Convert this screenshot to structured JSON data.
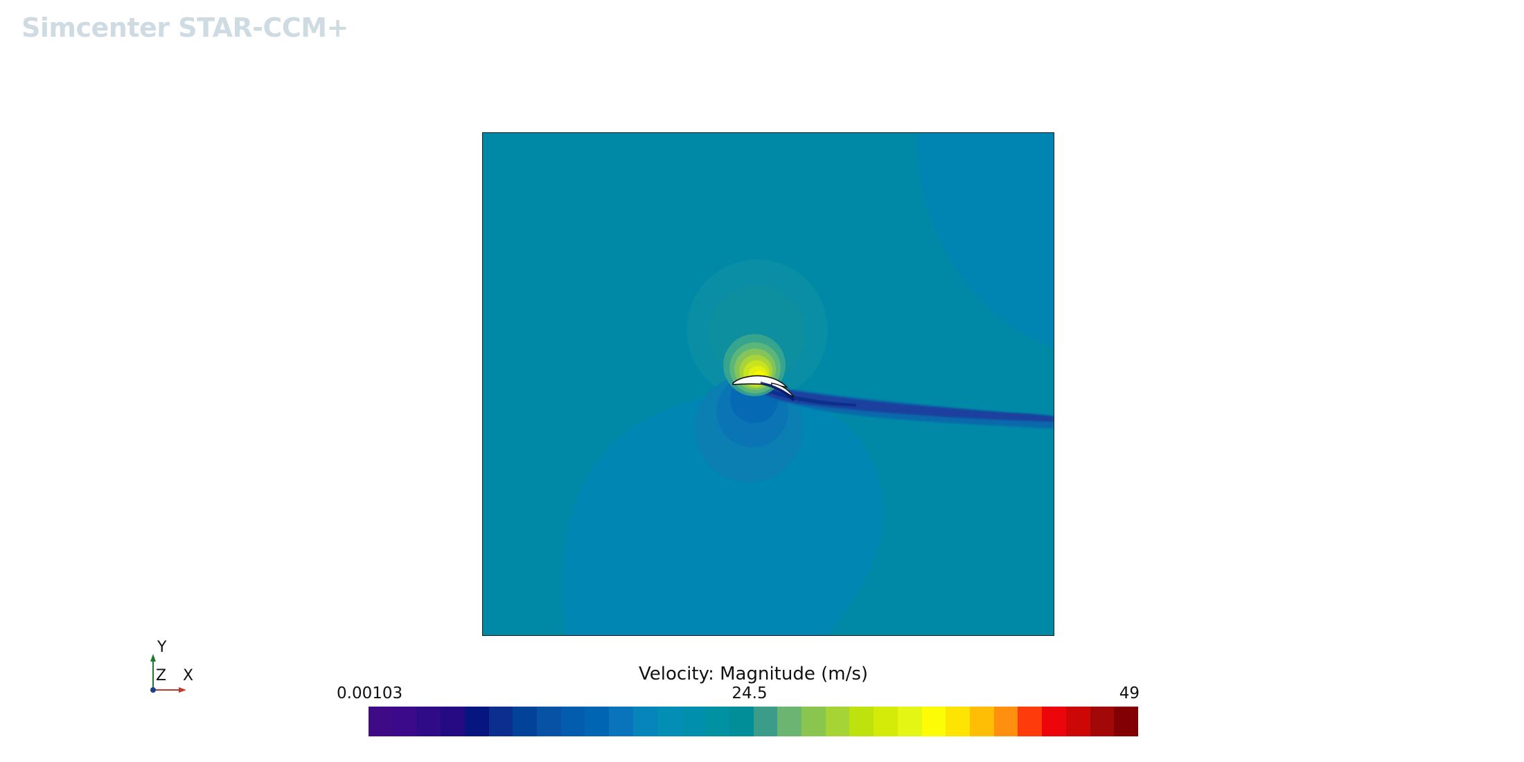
{
  "watermark": {
    "text": "Simcenter STAR-CCM+",
    "color": "#cfdbe3"
  },
  "scene": {
    "background_color": "#0089a6",
    "upper_right_region_color": "#0084b1",
    "lower_region_color": "#0086b2",
    "wake_color": "#1a3f9e"
  },
  "legend": {
    "title": "Velocity: Magnitude (m/s)",
    "min_label": "0.00103",
    "mid_label": "24.5",
    "max_label": "49",
    "colors": [
      "#3e0a86",
      "#3a0a8a",
      "#300b87",
      "#240b83",
      "#071581",
      "#0a2f8f",
      "#034299",
      "#0752a4",
      "#035cad",
      "#0066b4",
      "#0973bb",
      "#0685ba",
      "#038eb6",
      "#0090ad",
      "#0092a3",
      "#018e99",
      "#3c9c8a",
      "#6bb472",
      "#8ac550",
      "#a6d434",
      "#bde20d",
      "#d4ea09",
      "#e4f613",
      "#fbfc06",
      "#fee402",
      "#fdbe05",
      "#fe8f0f",
      "#fe3b0a",
      "#ec050a",
      "#cc0807",
      "#a30808",
      "#820004"
    ]
  },
  "triad": {
    "y_label": "Y",
    "z_label": "Z",
    "x_label": "X",
    "y_color": "#1c7a2f",
    "x_color": "#c0392b",
    "origin_color": "#1d3f8f"
  }
}
